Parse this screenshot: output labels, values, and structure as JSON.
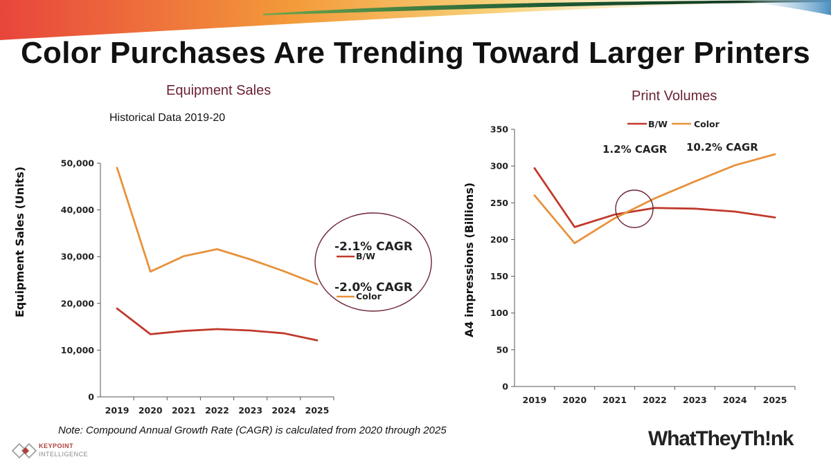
{
  "title": "Color Purchases Are Trending Toward Larger Printers",
  "footnote": "Note: Compound Annual Growth Rate (CAGR) is calculated from 2020 through 2025",
  "brand": {
    "keypoint_line1": "KEYPOINT",
    "keypoint_line2": "INTELLIGENCE",
    "whattheythink": "WhatTheyTh!nk"
  },
  "colors": {
    "bw": "#c0392b",
    "color": "#e8913a",
    "title_accent": "#6b2233",
    "circle": "#6b2233"
  },
  "chart_data": [
    {
      "type": "line",
      "title": "Equipment Sales",
      "subtitle": "Historical Data 2019-20",
      "xlabel": "",
      "ylabel": "Equipment Sales (Units)",
      "categories": [
        "2019",
        "2020",
        "2021",
        "2022",
        "2023",
        "2024",
        "2025"
      ],
      "ylim": [
        0,
        50000
      ],
      "yticks": [
        "0",
        "10,000",
        "20,000",
        "30,000",
        "40,000",
        "50,000"
      ],
      "series": [
        {
          "name": "B/W",
          "values": [
            18900,
            13400,
            14100,
            14500,
            14200,
            13600,
            12100
          ]
        },
        {
          "name": "Color",
          "values": [
            49000,
            26800,
            30100,
            31600,
            29400,
            26900,
            24100
          ]
        }
      ],
      "annotations": [
        "-2.1% CAGR",
        "-2.0% CAGR"
      ],
      "legend": "right, inside circled annotation"
    },
    {
      "type": "line",
      "title": "Print Volumes",
      "xlabel": "",
      "ylabel": "A4 impressions (Billions)",
      "categories": [
        "2019",
        "2020",
        "2021",
        "2022",
        "2023",
        "2024",
        "2025"
      ],
      "ylim": [
        0,
        350
      ],
      "yticks": [
        "0",
        "50",
        "100",
        "150",
        "200",
        "250",
        "300",
        "350"
      ],
      "series": [
        {
          "name": "B/W",
          "values": [
            297,
            217,
            234,
            243,
            242,
            238,
            230
          ]
        },
        {
          "name": "Color",
          "values": [
            260,
            195,
            229,
            256,
            279,
            301,
            316
          ]
        }
      ],
      "annotations": [
        "1.2% CAGR",
        "10.2% CAGR"
      ],
      "legend": "top"
    }
  ]
}
